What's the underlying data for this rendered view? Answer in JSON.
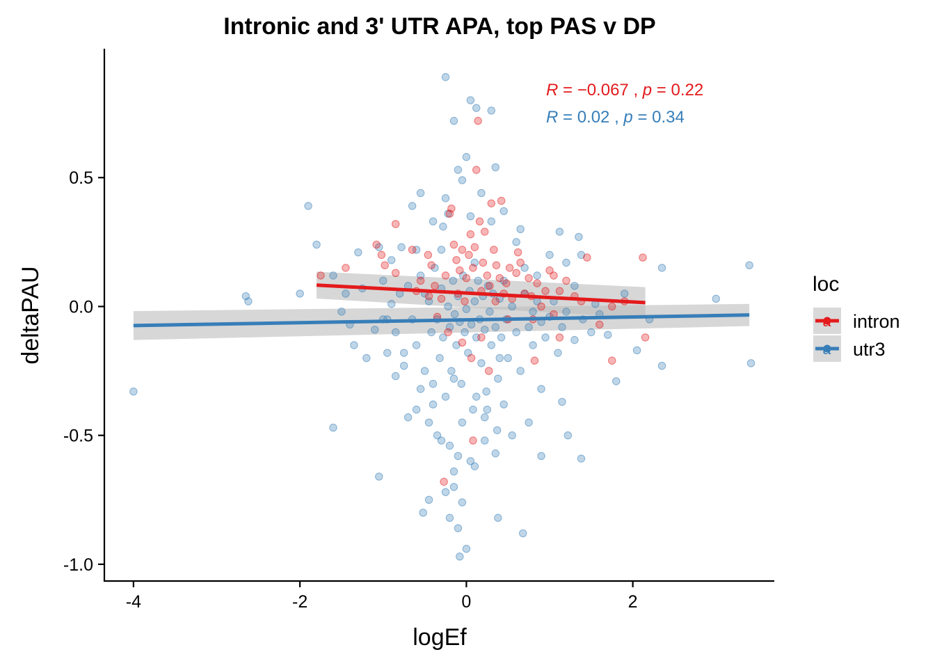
{
  "chart_data": {
    "type": "scatter",
    "title": "Intronic and 3' UTR APA, top PAS v DP",
    "xlabel": "logEf",
    "ylabel": "deltaPAU",
    "xlim": [
      -4.35,
      3.7
    ],
    "ylim": [
      -1.065,
      1.0
    ],
    "x_ticks": [
      -4,
      -2,
      0,
      2
    ],
    "x_tick_labels": [
      "-4",
      "-2",
      "0",
      "2"
    ],
    "y_ticks": [
      0.5,
      0.0,
      -0.5,
      -1.0
    ],
    "y_tick_labels": [
      "0.5",
      "0.0",
      "-0.5",
      "-1.0"
    ],
    "grid": false,
    "legend": {
      "title": "loc",
      "position": "right",
      "key_glyph": "a"
    },
    "series": [
      {
        "name": "intron",
        "color": "#e41a1c",
        "stat_label": {
          "R_symbol": "R",
          "R_text": " = −0.067 , ",
          "p_symbol": "p",
          "p_text": " = 0.22"
        },
        "fit": {
          "x": [
            -1.8,
            2.15
          ],
          "y": [
            0.083,
            0.015
          ]
        },
        "ci_band": {
          "x": [
            -1.8,
            2.15
          ],
          "upper": [
            0.135,
            0.075
          ],
          "lower": [
            0.031,
            -0.045
          ]
        },
        "points": [
          [
            -1.75,
            0.12
          ],
          [
            -1.45,
            0.15
          ],
          [
            -1.08,
            0.24
          ],
          [
            -1.02,
            0.2
          ],
          [
            -0.98,
            0.16
          ],
          [
            -0.85,
            0.32
          ],
          [
            -0.85,
            0.13
          ],
          [
            -0.65,
            0.22
          ],
          [
            -0.55,
            0.1
          ],
          [
            -0.46,
            0.2
          ],
          [
            -0.42,
            0.16
          ],
          [
            -0.38,
            0.08
          ],
          [
            -0.3,
            0.03
          ],
          [
            -0.25,
            0.12
          ],
          [
            -0.2,
            0.36
          ],
          [
            -0.18,
            0.38
          ],
          [
            -0.15,
            0.24
          ],
          [
            -0.12,
            0.18
          ],
          [
            -0.1,
            0.05
          ],
          [
            -0.08,
            0.14
          ],
          [
            -0.05,
            0.22
          ],
          [
            -0.02,
            0.02
          ],
          [
            0.0,
            0.11
          ],
          [
            0.03,
            0.2
          ],
          [
            0.05,
            0.28
          ],
          [
            0.08,
            0.15
          ],
          [
            0.1,
            0.23
          ],
          [
            0.12,
            0.53
          ],
          [
            0.14,
            0.72
          ],
          [
            0.16,
            0.33
          ],
          [
            0.18,
            0.06
          ],
          [
            0.2,
            0.17
          ],
          [
            0.22,
            0.29
          ],
          [
            0.25,
            0.12
          ],
          [
            0.28,
            0.08
          ],
          [
            0.3,
            0.4
          ],
          [
            0.33,
            0.22
          ],
          [
            0.36,
            0.16
          ],
          [
            0.4,
            0.11
          ],
          [
            0.42,
            0.41
          ],
          [
            0.45,
            0.05
          ],
          [
            0.48,
            0.09
          ],
          [
            0.52,
            0.15
          ],
          [
            0.55,
            0.03
          ],
          [
            0.6,
            0.13
          ],
          [
            0.65,
            0.17
          ],
          [
            0.7,
            0.05
          ],
          [
            0.75,
            0.11
          ],
          [
            0.8,
            -0.05
          ],
          [
            0.85,
            0.09
          ],
          [
            0.9,
            0.0
          ],
          [
            0.95,
            0.06
          ],
          [
            1.0,
            0.14
          ],
          [
            1.05,
            -0.03
          ],
          [
            1.12,
            0.06
          ],
          [
            1.2,
            0.1
          ],
          [
            1.3,
            0.04
          ],
          [
            1.38,
            0.02
          ],
          [
            1.45,
            0.19
          ],
          [
            1.6,
            -0.07
          ],
          [
            1.75,
            0.0
          ],
          [
            1.9,
            0.02
          ],
          [
            2.12,
            0.19
          ],
          [
            2.15,
            -0.12
          ],
          [
            -0.35,
            -0.04
          ],
          [
            -0.22,
            -0.1
          ],
          [
            -0.05,
            -0.14
          ],
          [
            0.06,
            -0.2
          ],
          [
            0.18,
            -0.12
          ],
          [
            0.27,
            -0.25
          ],
          [
            0.5,
            -0.05
          ],
          [
            0.82,
            -0.21
          ],
          [
            1.12,
            -0.12
          ],
          [
            1.75,
            -0.21
          ],
          [
            0.08,
            -0.52
          ],
          [
            -0.27,
            -0.68
          ],
          [
            -0.6,
            0.06
          ],
          [
            -0.45,
            0.04
          ],
          [
            0.35,
            0.02
          ],
          [
            0.62,
            0.21
          ],
          [
            0.78,
            0.04
          ],
          [
            1.05,
            0.12
          ]
        ]
      },
      {
        "name": "utr3",
        "color": "#377eb8",
        "stat_label": {
          "R_symbol": "R",
          "R_text": " = 0.02 , ",
          "p_symbol": "p",
          "p_text": " = 0.34"
        },
        "fit": {
          "x": [
            -4.0,
            3.4
          ],
          "y": [
            -0.074,
            -0.033
          ]
        },
        "ci_band": {
          "x": [
            -4.0,
            3.4
          ],
          "upper": [
            -0.018,
            0.01
          ],
          "lower": [
            -0.13,
            -0.076
          ]
        },
        "points": [
          [
            -4.0,
            -0.33
          ],
          [
            -2.65,
            0.04
          ],
          [
            -2.62,
            0.02
          ],
          [
            -2.0,
            0.05
          ],
          [
            -1.9,
            0.39
          ],
          [
            -1.8,
            0.24
          ],
          [
            -1.6,
            -0.47
          ],
          [
            -1.05,
            -0.66
          ],
          [
            -0.25,
            0.89
          ],
          [
            0.05,
            0.8
          ],
          [
            0.12,
            0.77
          ],
          [
            0.3,
            0.76
          ],
          [
            -0.15,
            0.72
          ],
          [
            0.0,
            0.58
          ],
          [
            0.35,
            0.54
          ],
          [
            -0.1,
            0.53
          ],
          [
            -0.05,
            0.49
          ],
          [
            -0.55,
            0.44
          ],
          [
            0.18,
            0.44
          ],
          [
            -0.25,
            0.42
          ],
          [
            -0.65,
            0.39
          ],
          [
            -0.22,
            0.36
          ],
          [
            0.45,
            0.37
          ],
          [
            -0.4,
            0.33
          ],
          [
            0.65,
            0.3
          ],
          [
            1.12,
            0.29
          ],
          [
            1.35,
            0.27
          ],
          [
            -0.28,
            0.31
          ],
          [
            0.3,
            0.33
          ],
          [
            -0.78,
            0.23
          ],
          [
            1.38,
            0.2
          ],
          [
            1.0,
            0.2
          ],
          [
            1.2,
            0.17
          ],
          [
            3.4,
            0.16
          ],
          [
            2.35,
            0.15
          ],
          [
            -1.3,
            0.21
          ],
          [
            -1.05,
            0.23
          ],
          [
            3.0,
            0.03
          ],
          [
            -1.6,
            0.12
          ],
          [
            -1.5,
            -0.02
          ],
          [
            -1.45,
            0.05
          ],
          [
            -1.35,
            -0.15
          ],
          [
            -1.25,
            0.07
          ],
          [
            -1.2,
            -0.2
          ],
          [
            -1.0,
            0.1
          ],
          [
            -0.95,
            -0.05
          ],
          [
            -0.9,
            0.01
          ],
          [
            -0.85,
            -0.1
          ],
          [
            -0.8,
            0.05
          ],
          [
            -0.75,
            -0.18
          ],
          [
            -0.7,
            0.08
          ],
          [
            -0.65,
            -0.05
          ],
          [
            -0.6,
            -0.15
          ],
          [
            -0.55,
            0.12
          ],
          [
            -0.5,
            -0.25
          ],
          [
            -0.45,
            0.02
          ],
          [
            -0.42,
            -0.1
          ],
          [
            -0.4,
            -0.3
          ],
          [
            -0.38,
            0.15
          ],
          [
            -0.35,
            -0.05
          ],
          [
            -0.32,
            -0.2
          ],
          [
            -0.3,
            0.07
          ],
          [
            -0.28,
            -0.12
          ],
          [
            -0.25,
            -0.35
          ],
          [
            -0.22,
            0.0
          ],
          [
            -0.2,
            -0.08
          ],
          [
            -0.18,
            -0.25
          ],
          [
            -0.16,
            0.1
          ],
          [
            -0.14,
            -0.03
          ],
          [
            -0.12,
            -0.15
          ],
          [
            -0.1,
            0.04
          ],
          [
            -0.08,
            -0.06
          ],
          [
            -0.06,
            -0.3
          ],
          [
            -0.04,
            0.12
          ],
          [
            -0.02,
            -0.1
          ],
          [
            0.0,
            -0.01
          ],
          [
            0.02,
            -0.18
          ],
          [
            0.04,
            0.06
          ],
          [
            0.06,
            -0.07
          ],
          [
            0.08,
            -0.4
          ],
          [
            0.1,
            0.02
          ],
          [
            0.12,
            -0.12
          ],
          [
            0.14,
            0.1
          ],
          [
            0.16,
            -0.05
          ],
          [
            0.18,
            -0.22
          ],
          [
            0.2,
            0.04
          ],
          [
            0.22,
            -0.09
          ],
          [
            0.24,
            -0.33
          ],
          [
            0.26,
            0.08
          ],
          [
            0.28,
            -0.02
          ],
          [
            0.3,
            -0.15
          ],
          [
            0.32,
            0.05
          ],
          [
            0.35,
            -0.08
          ],
          [
            0.38,
            -0.28
          ],
          [
            0.4,
            0.03
          ],
          [
            0.42,
            -0.12
          ],
          [
            0.45,
            0.1
          ],
          [
            0.48,
            -0.05
          ],
          [
            0.5,
            -0.2
          ],
          [
            0.55,
            0.0
          ],
          [
            0.6,
            -0.1
          ],
          [
            0.65,
            -0.25
          ],
          [
            0.7,
            0.05
          ],
          [
            0.75,
            -0.08
          ],
          [
            0.8,
            -0.15
          ],
          [
            0.85,
            0.02
          ],
          [
            0.9,
            -0.06
          ],
          [
            0.95,
            -0.12
          ],
          [
            1.0,
            -0.04
          ],
          [
            1.05,
            0.02
          ],
          [
            1.1,
            -0.18
          ],
          [
            1.15,
            -0.08
          ],
          [
            1.2,
            -0.02
          ],
          [
            1.3,
            -0.13
          ],
          [
            1.4,
            -0.05
          ],
          [
            1.5,
            -0.1
          ],
          [
            1.6,
            -0.03
          ],
          [
            1.7,
            -0.11
          ],
          [
            1.8,
            -0.29
          ],
          [
            1.9,
            0.05
          ],
          [
            2.05,
            -0.17
          ],
          [
            2.2,
            -0.05
          ],
          [
            2.35,
            -0.23
          ],
          [
            3.42,
            -0.22
          ],
          [
            -0.7,
            -0.43
          ],
          [
            -0.6,
            -0.4
          ],
          [
            -0.45,
            -0.45
          ],
          [
            -0.35,
            -0.5
          ],
          [
            -0.2,
            -0.54
          ],
          [
            -0.1,
            -0.58
          ],
          [
            0.05,
            -0.6
          ],
          [
            0.22,
            -0.43
          ],
          [
            0.37,
            -0.48
          ],
          [
            0.55,
            -0.5
          ],
          [
            0.75,
            -0.45
          ],
          [
            0.9,
            -0.32
          ],
          [
            1.15,
            -0.37
          ],
          [
            1.22,
            -0.5
          ],
          [
            0.9,
            -0.58
          ],
          [
            1.38,
            -0.59
          ],
          [
            0.35,
            -0.57
          ],
          [
            0.1,
            -0.62
          ],
          [
            -0.15,
            -0.64
          ],
          [
            -0.45,
            -0.75
          ],
          [
            -0.52,
            -0.8
          ],
          [
            -0.2,
            -0.82
          ],
          [
            -0.1,
            -0.86
          ],
          [
            0.0,
            -0.94
          ],
          [
            -0.08,
            -0.97
          ],
          [
            0.38,
            -0.82
          ],
          [
            0.68,
            -0.88
          ],
          [
            -0.05,
            -0.76
          ],
          [
            -0.15,
            -0.7
          ],
          [
            -0.25,
            -0.72
          ],
          [
            -0.3,
            -0.52
          ],
          [
            0.22,
            -0.52
          ],
          [
            -1.0,
            -0.05
          ],
          [
            -0.9,
            0.18
          ],
          [
            -1.1,
            -0.09
          ],
          [
            -1.4,
            -0.07
          ],
          [
            0.7,
            0.15
          ],
          [
            0.6,
            0.25
          ],
          [
            0.85,
            0.12
          ],
          [
            -0.3,
            0.22
          ],
          [
            0.05,
            0.35
          ],
          [
            0.1,
            0.17
          ],
          [
            0.8,
            -0.02
          ],
          [
            1.3,
            0.08
          ],
          [
            1.55,
            0.01
          ],
          [
            -0.6,
            0.22
          ],
          [
            -0.75,
            -0.23
          ],
          [
            -0.85,
            -0.27
          ],
          [
            -0.95,
            -0.18
          ],
          [
            0.4,
            -0.2
          ],
          [
            -0.5,
            0.05
          ],
          [
            0.45,
            -0.38
          ],
          [
            0.25,
            -0.4
          ],
          [
            0.12,
            -0.35
          ],
          [
            -0.05,
            -0.45
          ],
          [
            -0.15,
            -0.28
          ],
          [
            -0.4,
            -0.38
          ],
          [
            -0.55,
            -0.32
          ]
        ]
      }
    ]
  }
}
